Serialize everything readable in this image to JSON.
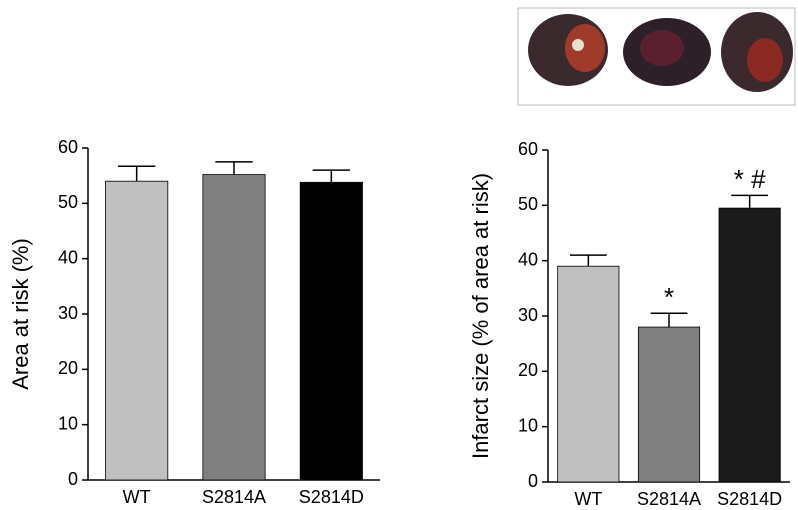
{
  "chart_data": [
    {
      "type": "bar",
      "y_label": "Area at risk (%)",
      "categories": [
        "WT",
        "S2814A",
        "S2814D"
      ],
      "values": [
        54,
        55.2,
        53.8
      ],
      "errors": [
        2.7,
        2.3,
        2.2
      ],
      "colors": [
        "#c0c0c0",
        "#808080",
        "#000000"
      ],
      "ylim": [
        0,
        60
      ],
      "yticks": [
        0,
        10,
        20,
        30,
        40,
        50,
        60
      ]
    },
    {
      "type": "bar",
      "y_label": "Infarct size (% of area at risk)",
      "categories": [
        "WT",
        "S2814A",
        "S2814D"
      ],
      "values": [
        39,
        28,
        49.5
      ],
      "errors": [
        2,
        2.5,
        2.3
      ],
      "annotations": [
        null,
        "*",
        "* #"
      ],
      "colors": [
        "#c0c0c0",
        "#808080",
        "#1a1a1a"
      ],
      "ylim": [
        0,
        60
      ],
      "yticks": [
        0,
        10,
        20,
        30,
        40,
        50,
        60
      ]
    }
  ]
}
